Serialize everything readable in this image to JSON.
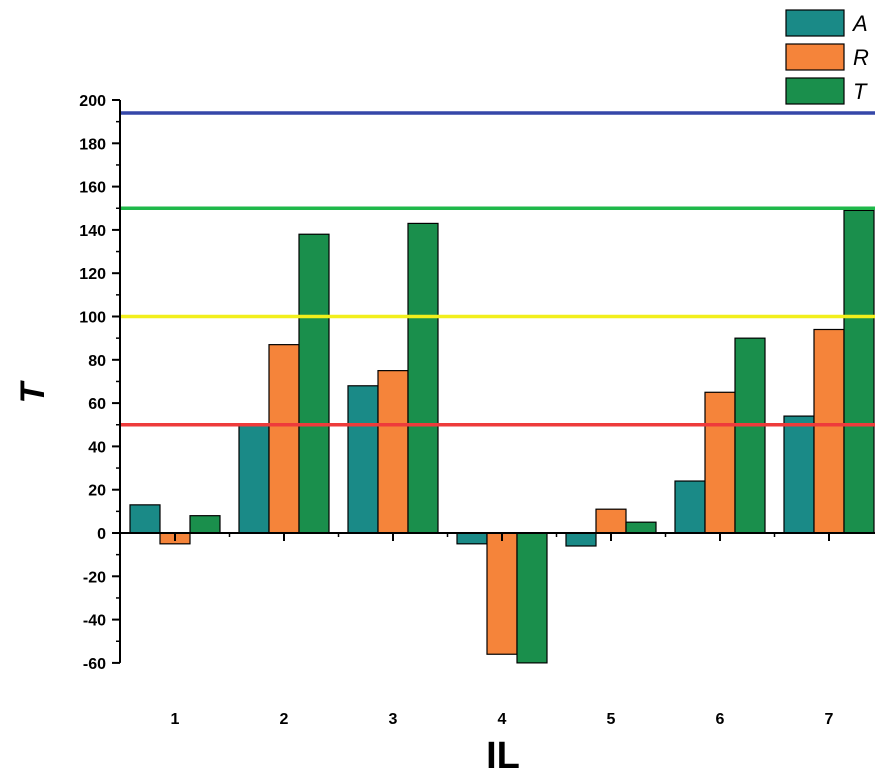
{
  "chart_data": {
    "type": "bar",
    "xlabel": "IL",
    "ylabel": "T",
    "categories": [
      "1",
      "2",
      "3",
      "4",
      "5",
      "6",
      "7"
    ],
    "series": [
      {
        "name": "A",
        "color": "#1a8a87",
        "values": [
          13,
          50,
          68,
          -5,
          -6,
          24,
          54
        ]
      },
      {
        "name": "R",
        "color": "#f5843a",
        "values": [
          -5,
          87,
          75,
          -56,
          11,
          65,
          94
        ]
      },
      {
        "name": "T",
        "color": "#1a8f4c",
        "values": [
          8,
          138,
          143,
          -60,
          5,
          90,
          149
        ]
      }
    ],
    "ylim": [
      -60,
      200
    ],
    "yticks": [
      -60,
      -40,
      -20,
      0,
      20,
      40,
      60,
      80,
      100,
      120,
      140,
      160,
      180,
      200
    ],
    "reference_lines": [
      {
        "value": 194,
        "color": "#3547a8"
      },
      {
        "value": 150,
        "color": "#1fb84a"
      },
      {
        "value": 100,
        "color": "#f2ef1c"
      },
      {
        "value": 50,
        "color": "#ee3b3b"
      }
    ],
    "grid": false,
    "legend_position": "top-right"
  }
}
